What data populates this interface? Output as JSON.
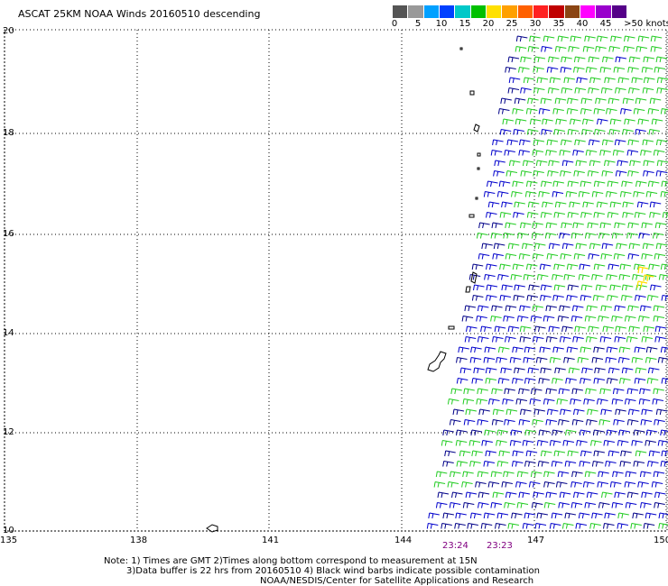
{
  "title": "ASCAT 25KM NOAA Winds 20160510 descending",
  "legend": {
    "colors": [
      "#555555",
      "#999999",
      "#00a0ff",
      "#0040ff",
      "#00c8c8",
      "#00c000",
      "#ffe000",
      "#ffa000",
      "#ff6000",
      "#ff2020",
      "#c00000",
      "#8b4513",
      "#ff00ff",
      "#9900cc",
      "#550088"
    ],
    "labels": [
      "0",
      "5",
      "10",
      "15",
      "20",
      "25",
      "30",
      "35",
      "40",
      "45",
      ">50 knots"
    ]
  },
  "axes": {
    "x_ticks": [
      "135",
      "138",
      "141",
      "144",
      "147",
      "150"
    ],
    "y_ticks": [
      "20",
      "18",
      "16",
      "14",
      "12",
      "10"
    ]
  },
  "swath_times": [
    "23:24",
    "23:23"
  ],
  "notes": {
    "line1": "Note: 1) Times are GMT 2)Times along bottom correspond to measurement at 15N",
    "line2": "3)Data buffer is 22 hrs from 20160510 4) Black wind barbs indicate possible contamination",
    "line3": "NOAA/NESDIS/Center for Satellite Applications and Research"
  },
  "colors": {
    "barb_blue": "#0000cc",
    "barb_navy": "#000088",
    "barb_green": "#22cc22",
    "barb_yellow": "#ffe000",
    "time_label": "#800080"
  }
}
